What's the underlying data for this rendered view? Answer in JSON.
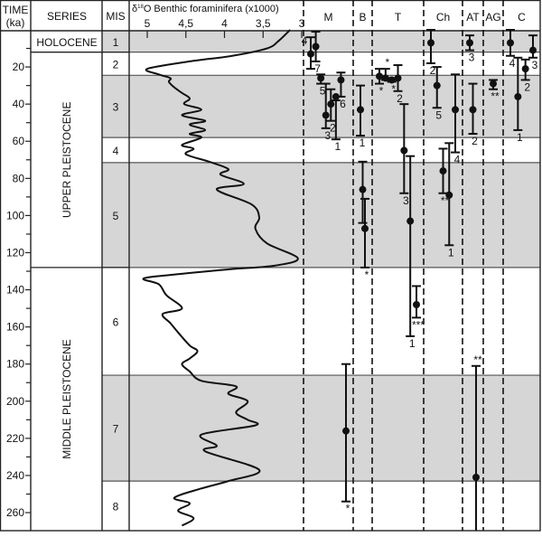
{
  "chart_data": {
    "type": "stratigraphic-range-chart",
    "title": "",
    "header": {
      "time": "TIME\n(ka)",
      "time_line1": "TIME",
      "time_line2": "(ka)",
      "series": "SERIES",
      "mis": "MIS",
      "isotope": "δ18O Benthic foraminifera (x1000)",
      "isotope_prefix": "δ",
      "isotope_sup": "18",
      "isotope_rest": "O Benthic foraminifera (x1000)"
    },
    "time_axis": {
      "label": "TIME (ka)",
      "min": 0,
      "max": 270,
      "major_ticks": [
        20,
        40,
        60,
        80,
        100,
        120,
        140,
        160,
        180,
        200,
        220,
        240,
        260
      ],
      "minor_ticks": [
        10,
        30,
        50,
        70,
        90,
        110,
        130,
        150,
        170,
        190,
        210,
        230,
        250
      ]
    },
    "isotope_axis": {
      "label": "δ18O Benthic foraminifera (x1000)",
      "ticks": [
        "5",
        "4,5",
        "4",
        "3,5",
        "3"
      ],
      "tick_values": [
        5,
        4.5,
        4,
        3.5,
        3
      ],
      "reversed": true
    },
    "series": [
      {
        "label": "HOLOCENE",
        "from": 0,
        "to": 12,
        "orientation": "horizontal"
      },
      {
        "label": "UPPER PLEISTOCENE",
        "from": 12,
        "to": 128,
        "orientation": "vertical"
      },
      {
        "label": "MIDDLE PLEISTOCENE",
        "from": 128,
        "to": 270,
        "orientation": "vertical"
      }
    ],
    "mis": [
      {
        "label": "1",
        "from": 0,
        "to": 12,
        "shaded": true
      },
      {
        "label": "2",
        "from": 12,
        "to": 24.5,
        "shaded": false
      },
      {
        "label": "3",
        "from": 24.5,
        "to": 58,
        "shaded": true
      },
      {
        "label": "4",
        "from": 58,
        "to": 71.5,
        "shaded": false
      },
      {
        "label": "5",
        "from": 71.5,
        "to": 128,
        "shaded": true
      },
      {
        "label": "6",
        "from": 128,
        "to": 186,
        "shaded": false
      },
      {
        "label": "7",
        "from": 186,
        "to": 243,
        "shaded": true
      },
      {
        "label": "8",
        "from": 243,
        "to": 270,
        "shaded": false
      }
    ],
    "isotope_curve": {
      "x_label": "δ18O (x1000)",
      "y_label": "Time (ka)",
      "points": [
        [
          3.15,
          0
        ],
        [
          3.3,
          6
        ],
        [
          3.45,
          10
        ],
        [
          3.9,
          14
        ],
        [
          4.45,
          17
        ],
        [
          5.0,
          21
        ],
        [
          4.85,
          24
        ],
        [
          4.7,
          26
        ],
        [
          4.72,
          28
        ],
        [
          4.65,
          31
        ],
        [
          4.55,
          34
        ],
        [
          4.45,
          37
        ],
        [
          4.52,
          40
        ],
        [
          4.3,
          43
        ],
        [
          4.55,
          46
        ],
        [
          4.25,
          49
        ],
        [
          4.45,
          51
        ],
        [
          4.25,
          54
        ],
        [
          4.45,
          56
        ],
        [
          4.3,
          58
        ],
        [
          4.55,
          62
        ],
        [
          4.4,
          64
        ],
        [
          4.5,
          67
        ],
        [
          4.2,
          71
        ],
        [
          3.95,
          75
        ],
        [
          4.05,
          78
        ],
        [
          3.75,
          83
        ],
        [
          4.1,
          86
        ],
        [
          3.65,
          94
        ],
        [
          3.55,
          101
        ],
        [
          3.6,
          107
        ],
        [
          3.45,
          115
        ],
        [
          3.05,
          123
        ],
        [
          3.35,
          127
        ],
        [
          3.95,
          129
        ],
        [
          4.7,
          132
        ],
        [
          5.05,
          134
        ],
        [
          4.85,
          137
        ],
        [
          4.75,
          143
        ],
        [
          4.55,
          150
        ],
        [
          4.8,
          153
        ],
        [
          4.7,
          158
        ],
        [
          4.6,
          163
        ],
        [
          4.45,
          170
        ],
        [
          4.35,
          173
        ],
        [
          4.45,
          177
        ],
        [
          4.55,
          180
        ],
        [
          4.45,
          184
        ],
        [
          4.3,
          189
        ],
        [
          3.85,
          192
        ],
        [
          3.95,
          196
        ],
        [
          3.7,
          200
        ],
        [
          3.85,
          206
        ],
        [
          3.7,
          210
        ],
        [
          3.6,
          213
        ],
        [
          4.3,
          218
        ],
        [
          4.1,
          224
        ],
        [
          4.25,
          227
        ],
        [
          3.55,
          237
        ],
        [
          3.95,
          243
        ],
        [
          4.3,
          247
        ],
        [
          4.65,
          252
        ],
        [
          4.45,
          255
        ],
        [
          4.6,
          259
        ],
        [
          4.4,
          263
        ],
        [
          4.55,
          267
        ]
      ]
    },
    "taxa_columns": [
      {
        "label": "M",
        "ranges": [
          {
            "from": 4,
            "to": 21,
            "point": 13,
            "label": "4",
            "label_pos": "top-left"
          },
          {
            "from": 1,
            "to": 17,
            "point": 9,
            "label": "7",
            "label_pos": "bottom"
          },
          {
            "from": 24,
            "to": 29,
            "point": 26,
            "label": "5",
            "label_pos": "bottom"
          },
          {
            "from": 29,
            "to": 53,
            "point": 46,
            "label": "3",
            "label_pos": "bottom"
          },
          {
            "from": 32,
            "to": 49,
            "point": 40,
            "label": "2",
            "label_pos": "bottom"
          },
          {
            "from": 38,
            "to": 59,
            "point": 36,
            "label": "1",
            "label_pos": "bottom"
          },
          {
            "from": 23,
            "to": 36,
            "point": 27,
            "label": "6",
            "label_pos": "bottom"
          },
          {
            "from": 180,
            "to": 254,
            "point": 216,
            "label": "*",
            "label_pos": "bottom"
          }
        ]
      },
      {
        "label": "B",
        "ranges": [
          {
            "from": 30,
            "to": 57,
            "point": 43,
            "label": "1",
            "label_pos": "bottom"
          },
          {
            "from": 71,
            "to": 104,
            "point": 86,
            "label": "*",
            "label_pos": "bottom"
          },
          {
            "from": 91,
            "to": 128,
            "point": 107,
            "label": "*",
            "label_pos": "bottom"
          }
        ]
      },
      {
        "label": "T",
        "ranges": [
          {
            "from": 21,
            "to": 29,
            "point": 25,
            "label": "*",
            "label_pos": "bottom"
          },
          {
            "from": 21,
            "to": 27,
            "point": 26,
            "label": "*",
            "label_pos": "top"
          },
          {
            "from": 26,
            "to": 28,
            "point": 27,
            "label": "*",
            "label_pos": "bottom"
          },
          {
            "from": 19,
            "to": 33,
            "point": 26,
            "label": "2",
            "label_pos": "bottom"
          },
          {
            "from": 40,
            "to": 88,
            "point": 65,
            "label": "3",
            "label_pos": "bottom"
          },
          {
            "from": 68,
            "to": 165,
            "point": 103,
            "label": "1",
            "label_pos": "bottom"
          },
          {
            "from": 138,
            "to": 155,
            "point": 148,
            "label": "***",
            "label_pos": "bottom"
          }
        ]
      },
      {
        "label": "Ch",
        "ranges": [
          {
            "from": 0,
            "to": 18,
            "point": 7,
            "label": "2",
            "label_pos": "bottom"
          },
          {
            "from": 20,
            "to": 42,
            "point": 30,
            "label": "5",
            "label_pos": "bottom"
          },
          {
            "from": 64,
            "to": 88,
            "point": 76,
            "label": "**",
            "label_pos": "bottom"
          },
          {
            "from": 61,
            "to": 116,
            "point": 89,
            "label": "1",
            "label_pos": "bottom"
          },
          {
            "from": 24,
            "to": 66,
            "point": 43,
            "label": "4",
            "label_pos": "bottom"
          }
        ]
      },
      {
        "label": "AT",
        "ranges": [
          {
            "from": 3,
            "to": 11,
            "point": 7,
            "label": "3",
            "label_pos": "bottom"
          },
          {
            "from": 29,
            "to": 56,
            "point": 43,
            "label": "2",
            "label_pos": "bottom"
          },
          {
            "from": 181,
            "to": 270,
            "point": 241,
            "label": "**",
            "label_pos": "top"
          }
        ]
      },
      {
        "label": "AG",
        "ranges": [
          {
            "from": 27,
            "to": 32,
            "point": 29,
            "label": "**",
            "label_pos": "bottom"
          }
        ]
      },
      {
        "label": "C",
        "ranges": [
          {
            "from": 0,
            "to": 14,
            "point": 7,
            "label": "4",
            "label_pos": "bottom"
          },
          {
            "from": 15,
            "to": 54,
            "point": 36,
            "label": "1",
            "label_pos": "bottom"
          },
          {
            "from": 16,
            "to": 27,
            "point": 21,
            "label": "2",
            "label_pos": "bottom"
          },
          {
            "from": 3,
            "to": 15,
            "point": 11,
            "label": "3",
            "label_pos": "bottom"
          }
        ]
      }
    ]
  }
}
